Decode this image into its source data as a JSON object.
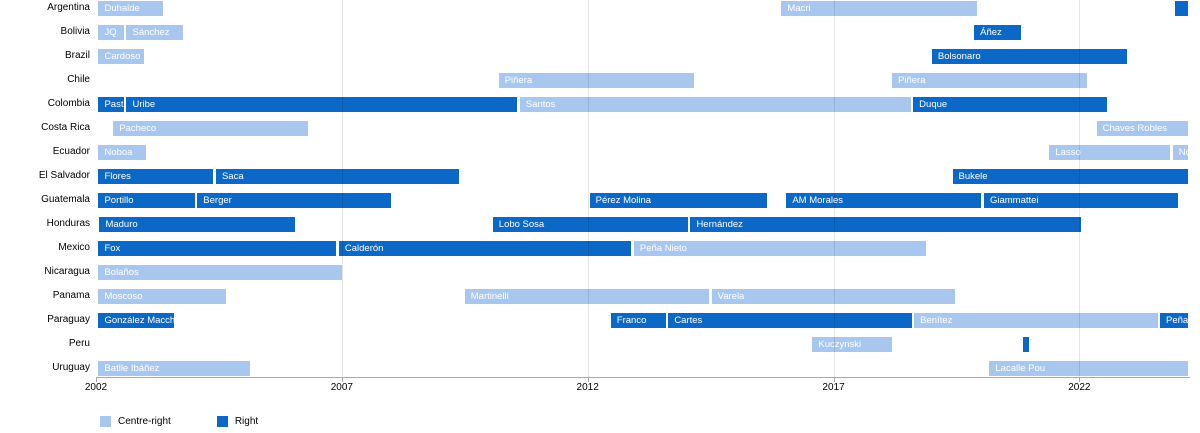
{
  "chart_data": {
    "type": "timeline",
    "title": "",
    "x_axis": {
      "min": 2002,
      "max": 2024.25,
      "ticks": [
        {
          "year": 2002,
          "label": "2002"
        },
        {
          "year": 2007,
          "label": "2007"
        },
        {
          "year": 2012,
          "label": "2012"
        },
        {
          "year": 2017,
          "label": "2017"
        },
        {
          "year": 2022,
          "label": "2022"
        }
      ]
    },
    "legend": [
      {
        "key": "centre-right",
        "label": "Centre-right",
        "color": "#a7c7ef"
      },
      {
        "key": "right",
        "label": "Right",
        "color": "#0b68c6"
      }
    ],
    "rows": [
      {
        "country": "Argentina",
        "bars": [
          {
            "label": "Duhalde",
            "start": 2002.05,
            "end": 2003.4,
            "type": "centre-right"
          },
          {
            "label": "Macri",
            "start": 2015.94,
            "end": 2019.94,
            "type": "centre-right"
          },
          {
            "label": "",
            "start": 2023.94,
            "end": 2024.25,
            "type": "right"
          }
        ]
      },
      {
        "country": "Bolivia",
        "bars": [
          {
            "label": "JQ",
            "start": 2002.05,
            "end": 2002.6,
            "type": "centre-right"
          },
          {
            "label": "Sánchez",
            "start": 2002.62,
            "end": 2003.79,
            "type": "centre-right"
          },
          {
            "label": "Áñez",
            "start": 2019.86,
            "end": 2020.85,
            "type": "right"
          }
        ]
      },
      {
        "country": "Brazil",
        "bars": [
          {
            "label": "Cardoso",
            "start": 2002.05,
            "end": 2003.0,
            "type": "centre-right"
          },
          {
            "label": "Bolsonaro",
            "start": 2019.0,
            "end": 2023.0,
            "type": "right"
          }
        ]
      },
      {
        "country": "Chile",
        "bars": [
          {
            "label": "Piñera",
            "start": 2010.19,
            "end": 2014.19,
            "type": "centre-right"
          },
          {
            "label": "Piñera",
            "start": 2018.19,
            "end": 2022.19,
            "type": "centre-right"
          }
        ]
      },
      {
        "country": "Colombia",
        "bars": [
          {
            "label": "Pastrana",
            "start": 2002.05,
            "end": 2002.6,
            "type": "right"
          },
          {
            "label": "Uribe",
            "start": 2002.62,
            "end": 2010.6,
            "type": "right"
          },
          {
            "label": "Santos",
            "start": 2010.62,
            "end": 2018.6,
            "type": "centre-right"
          },
          {
            "label": "Duque",
            "start": 2018.62,
            "end": 2022.6,
            "type": "right"
          }
        ]
      },
      {
        "country": "Costa Rica",
        "bars": [
          {
            "label": "Pacheco",
            "start": 2002.35,
            "end": 2006.35,
            "type": "centre-right"
          },
          {
            "label": "Chaves Robles",
            "start": 2022.35,
            "end": 2024.25,
            "type": "centre-right"
          }
        ]
      },
      {
        "country": "Ecuador",
        "bars": [
          {
            "label": "Noboa",
            "start": 2002.05,
            "end": 2003.04,
            "type": "centre-right"
          },
          {
            "label": "Lasso",
            "start": 2021.39,
            "end": 2023.88,
            "type": "centre-right"
          },
          {
            "label": "Noboa",
            "start": 2023.9,
            "end": 2024.25,
            "type": "centre-right"
          }
        ]
      },
      {
        "country": "El Salvador",
        "bars": [
          {
            "label": "Flores",
            "start": 2002.05,
            "end": 2004.42,
            "type": "right"
          },
          {
            "label": "Saca",
            "start": 2004.44,
            "end": 2009.42,
            "type": "right"
          },
          {
            "label": "Bukele",
            "start": 2019.42,
            "end": 2024.25,
            "type": "right"
          }
        ]
      },
      {
        "country": "Guatemala",
        "bars": [
          {
            "label": "Portillo",
            "start": 2002.05,
            "end": 2004.04,
            "type": "right"
          },
          {
            "label": "Berger",
            "start": 2004.06,
            "end": 2008.04,
            "type": "right"
          },
          {
            "label": "Pérez Molina",
            "start": 2012.04,
            "end": 2015.67,
            "type": "right"
          },
          {
            "label": "AM Morales",
            "start": 2016.04,
            "end": 2020.04,
            "type": "right"
          },
          {
            "label": "Giammattei",
            "start": 2020.06,
            "end": 2024.04,
            "type": "right"
          }
        ]
      },
      {
        "country": "Honduras",
        "bars": [
          {
            "label": "Maduro",
            "start": 2002.07,
            "end": 2006.07,
            "type": "right"
          },
          {
            "label": "Lobo Sosa",
            "start": 2010.07,
            "end": 2014.07,
            "type": "right"
          },
          {
            "label": "Hernández",
            "start": 2014.09,
            "end": 2022.07,
            "type": "right"
          }
        ]
      },
      {
        "country": "Mexico",
        "bars": [
          {
            "label": "Fox",
            "start": 2002.05,
            "end": 2006.92,
            "type": "right"
          },
          {
            "label": "Calderón",
            "start": 2006.94,
            "end": 2012.92,
            "type": "right"
          },
          {
            "label": "Peña Nieto",
            "start": 2012.94,
            "end": 2018.92,
            "type": "centre-right"
          }
        ]
      },
      {
        "country": "Nicaragua",
        "bars": [
          {
            "label": "Bolaños",
            "start": 2002.05,
            "end": 2007.03,
            "type": "centre-right"
          }
        ]
      },
      {
        "country": "Panama",
        "bars": [
          {
            "label": "Moscoso",
            "start": 2002.05,
            "end": 2004.67,
            "type": "centre-right"
          },
          {
            "label": "Martinelli",
            "start": 2009.5,
            "end": 2014.5,
            "type": "centre-right"
          },
          {
            "label": "Varela",
            "start": 2014.52,
            "end": 2019.5,
            "type": "centre-right"
          }
        ]
      },
      {
        "country": "Paraguay",
        "bars": [
          {
            "label": "González Macchi",
            "start": 2002.05,
            "end": 2003.62,
            "type": "right"
          },
          {
            "label": "Franco",
            "start": 2012.47,
            "end": 2013.62,
            "type": "right"
          },
          {
            "label": "Cartes",
            "start": 2013.64,
            "end": 2018.62,
            "type": "right"
          },
          {
            "label": "Benítez",
            "start": 2018.64,
            "end": 2023.62,
            "type": "centre-right"
          },
          {
            "label": "Peña",
            "start": 2023.64,
            "end": 2024.25,
            "type": "right"
          }
        ]
      },
      {
        "country": "Peru",
        "bars": [
          {
            "label": "Kuczynski",
            "start": 2016.57,
            "end": 2018.22,
            "type": "centre-right"
          },
          {
            "label": "",
            "start": 2020.86,
            "end": 2020.9,
            "type": "right"
          }
        ]
      },
      {
        "country": "Uruguay",
        "bars": [
          {
            "label": "Batlle Ibáñez",
            "start": 2002.05,
            "end": 2005.17,
            "type": "centre-right"
          },
          {
            "label": "Lacalle Pou",
            "start": 2020.17,
            "end": 2024.25,
            "type": "centre-right"
          }
        ]
      }
    ]
  }
}
